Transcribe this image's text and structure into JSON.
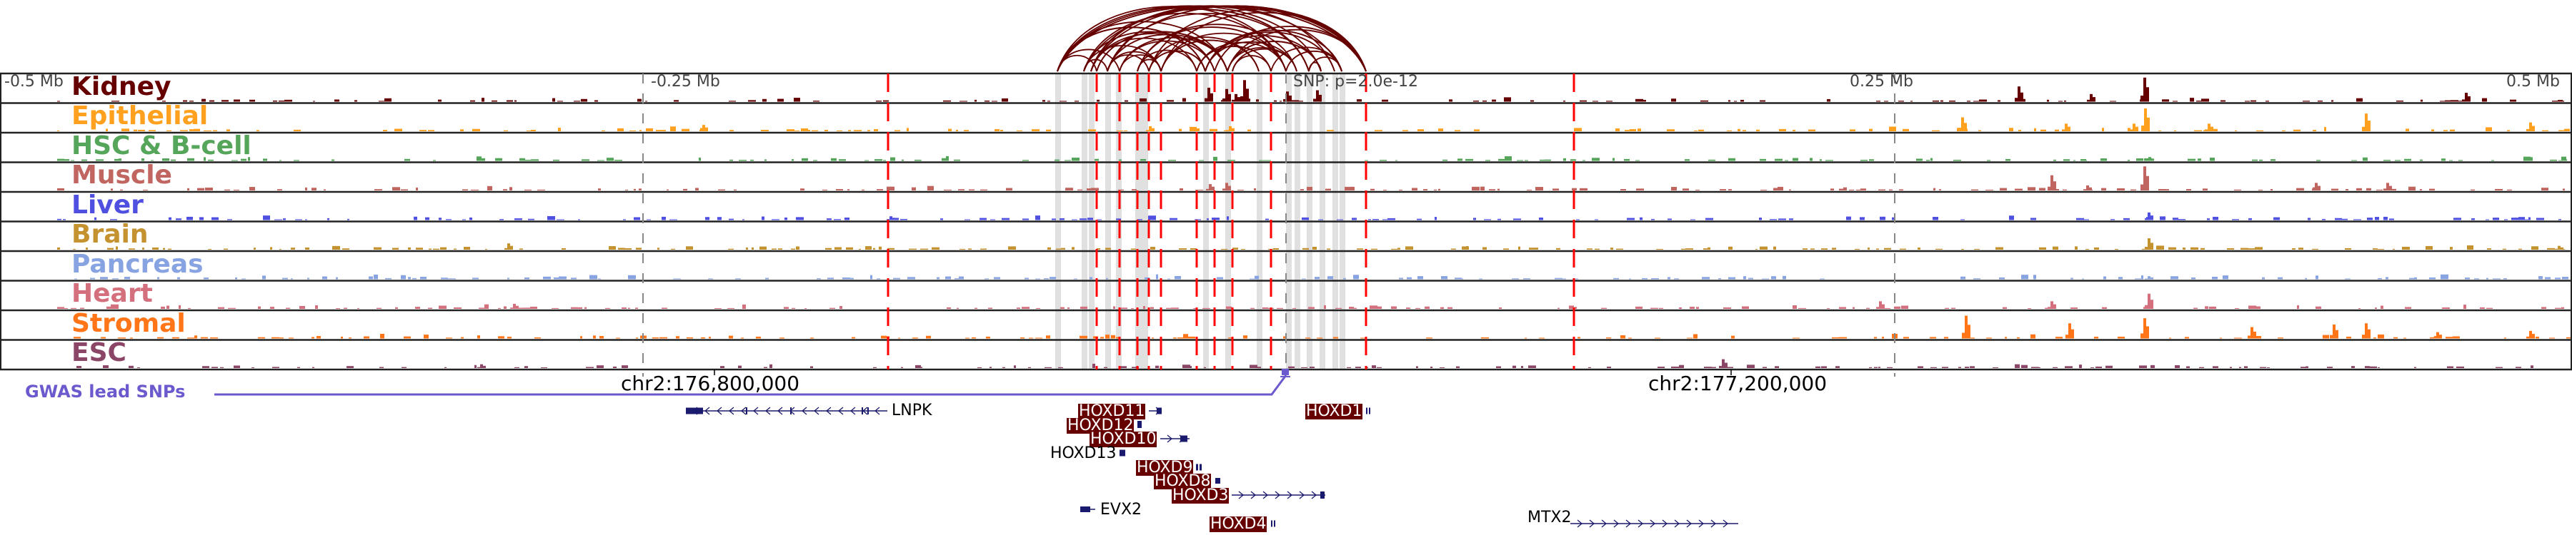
{
  "scale": {
    "ticks": [
      {
        "label": "-0.5 Mb"
      },
      {
        "label": "-0.25 Mb"
      },
      {
        "label": "0.25 Mb"
      },
      {
        "label": "0.5 Mb"
      }
    ],
    "snp_label": "SNP: p=2.0e-12"
  },
  "tracks": [
    {
      "name": "Kidney",
      "color": "#660000"
    },
    {
      "name": "Epithelial",
      "color": "#ffa01e"
    },
    {
      "name": "HSC & B-cell",
      "color": "#55a55a"
    },
    {
      "name": "Muscle",
      "color": "#c0655f"
    },
    {
      "name": "Liver",
      "color": "#5050e0"
    },
    {
      "name": "Brain",
      "color": "#c4922f"
    },
    {
      "name": "Pancreas",
      "color": "#88a3e2"
    },
    {
      "name": "Heart",
      "color": "#d4707e"
    },
    {
      "name": "Stromal",
      "color": "#ff7518"
    },
    {
      "name": "ESC",
      "color": "#8b4566"
    }
  ],
  "coordinates": {
    "left": "chr2:176,800,000",
    "right": "chr2:177,200,000"
  },
  "gwas": {
    "label": "GWAS lead SNPs",
    "color": "#6a5acd"
  },
  "genes": [
    {
      "name": "LNPK",
      "highlighted": false,
      "strand": "-"
    },
    {
      "name": "HOXD11",
      "highlighted": true,
      "strand": "+"
    },
    {
      "name": "HOXD12",
      "highlighted": true,
      "strand": "+"
    },
    {
      "name": "HOXD10",
      "highlighted": true,
      "strand": "+"
    },
    {
      "name": "HOXD13",
      "highlighted": false,
      "strand": "+"
    },
    {
      "name": "HOXD9",
      "highlighted": true,
      "strand": "+"
    },
    {
      "name": "HOXD8",
      "highlighted": true,
      "strand": "+"
    },
    {
      "name": "HOXD3",
      "highlighted": true,
      "strand": "+"
    },
    {
      "name": "EVX2",
      "highlighted": false,
      "strand": "-"
    },
    {
      "name": "HOXD4",
      "highlighted": true,
      "strand": "+"
    },
    {
      "name": "HOXD1",
      "highlighted": true,
      "strand": "+"
    },
    {
      "name": "MTX2",
      "highlighted": false,
      "strand": "+"
    }
  ],
  "colors": {
    "arc": "#660000",
    "enhancer_line": "#ff0000",
    "highlight_band": "#e0e0e0",
    "gene_structure": "#1a1a6e"
  }
}
